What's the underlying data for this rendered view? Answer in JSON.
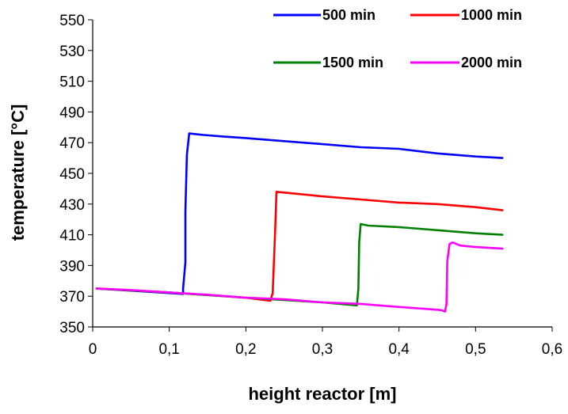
{
  "chart_data": {
    "type": "line",
    "title": "",
    "xlabel": "height reactor [m]",
    "ylabel": "temperature [°C]",
    "xlim": [
      0,
      0.6
    ],
    "ylim": [
      350,
      550
    ],
    "x_ticks": [
      0,
      0.1,
      0.2,
      0.3,
      0.4,
      0.5,
      0.6
    ],
    "x_tick_labels": [
      "0",
      "0,1",
      "0,2",
      "0,3",
      "0,4",
      "0,5",
      "0,6"
    ],
    "y_ticks": [
      350,
      370,
      390,
      410,
      430,
      450,
      470,
      490,
      510,
      530,
      550
    ],
    "y_tick_labels": [
      "350",
      "370",
      "390",
      "410",
      "430",
      "450",
      "470",
      "490",
      "510",
      "530",
      "550"
    ],
    "grid": false,
    "legend_position": "top",
    "series": [
      {
        "name": "500 min",
        "color": "#0000ff",
        "points": [
          [
            0.005,
            375
          ],
          [
            0.118,
            371.5
          ],
          [
            0.118,
            375
          ],
          [
            0.121,
            392
          ],
          [
            0.121,
            425
          ],
          [
            0.123,
            462
          ],
          [
            0.126,
            476
          ],
          [
            0.145,
            475
          ],
          [
            0.17,
            474
          ],
          [
            0.2,
            473
          ],
          [
            0.25,
            471
          ],
          [
            0.3,
            469
          ],
          [
            0.35,
            467
          ],
          [
            0.4,
            466
          ],
          [
            0.45,
            463
          ],
          [
            0.5,
            461
          ],
          [
            0.535,
            460
          ]
        ]
      },
      {
        "name": "1000 min",
        "color": "#ff0000",
        "points": [
          [
            0.005,
            375
          ],
          [
            0.1,
            372.5
          ],
          [
            0.2,
            369
          ],
          [
            0.232,
            367
          ],
          [
            0.235,
            372
          ],
          [
            0.238,
            410
          ],
          [
            0.24,
            438
          ],
          [
            0.26,
            437
          ],
          [
            0.3,
            435
          ],
          [
            0.35,
            433
          ],
          [
            0.4,
            431
          ],
          [
            0.45,
            430
          ],
          [
            0.5,
            428
          ],
          [
            0.535,
            426
          ]
        ]
      },
      {
        "name": "1500 min",
        "color": "#008000",
        "points": [
          [
            0.005,
            375
          ],
          [
            0.1,
            372.5
          ],
          [
            0.2,
            369
          ],
          [
            0.3,
            366
          ],
          [
            0.345,
            364
          ],
          [
            0.347,
            375
          ],
          [
            0.348,
            405
          ],
          [
            0.35,
            417
          ],
          [
            0.36,
            416
          ],
          [
            0.4,
            415
          ],
          [
            0.45,
            413
          ],
          [
            0.5,
            411
          ],
          [
            0.535,
            410
          ]
        ]
      },
      {
        "name": "2000 min",
        "color": "#ff00ff",
        "points": [
          [
            0.005,
            375
          ],
          [
            0.05,
            374
          ],
          [
            0.1,
            372.5
          ],
          [
            0.15,
            371
          ],
          [
            0.2,
            369
          ],
          [
            0.25,
            368
          ],
          [
            0.3,
            366
          ],
          [
            0.35,
            365
          ],
          [
            0.4,
            363
          ],
          [
            0.455,
            361
          ],
          [
            0.46,
            360
          ],
          [
            0.462,
            365
          ],
          [
            0.463,
            393
          ],
          [
            0.466,
            404
          ],
          [
            0.47,
            405
          ],
          [
            0.48,
            403
          ],
          [
            0.5,
            402
          ],
          [
            0.535,
            401
          ]
        ]
      }
    ]
  }
}
